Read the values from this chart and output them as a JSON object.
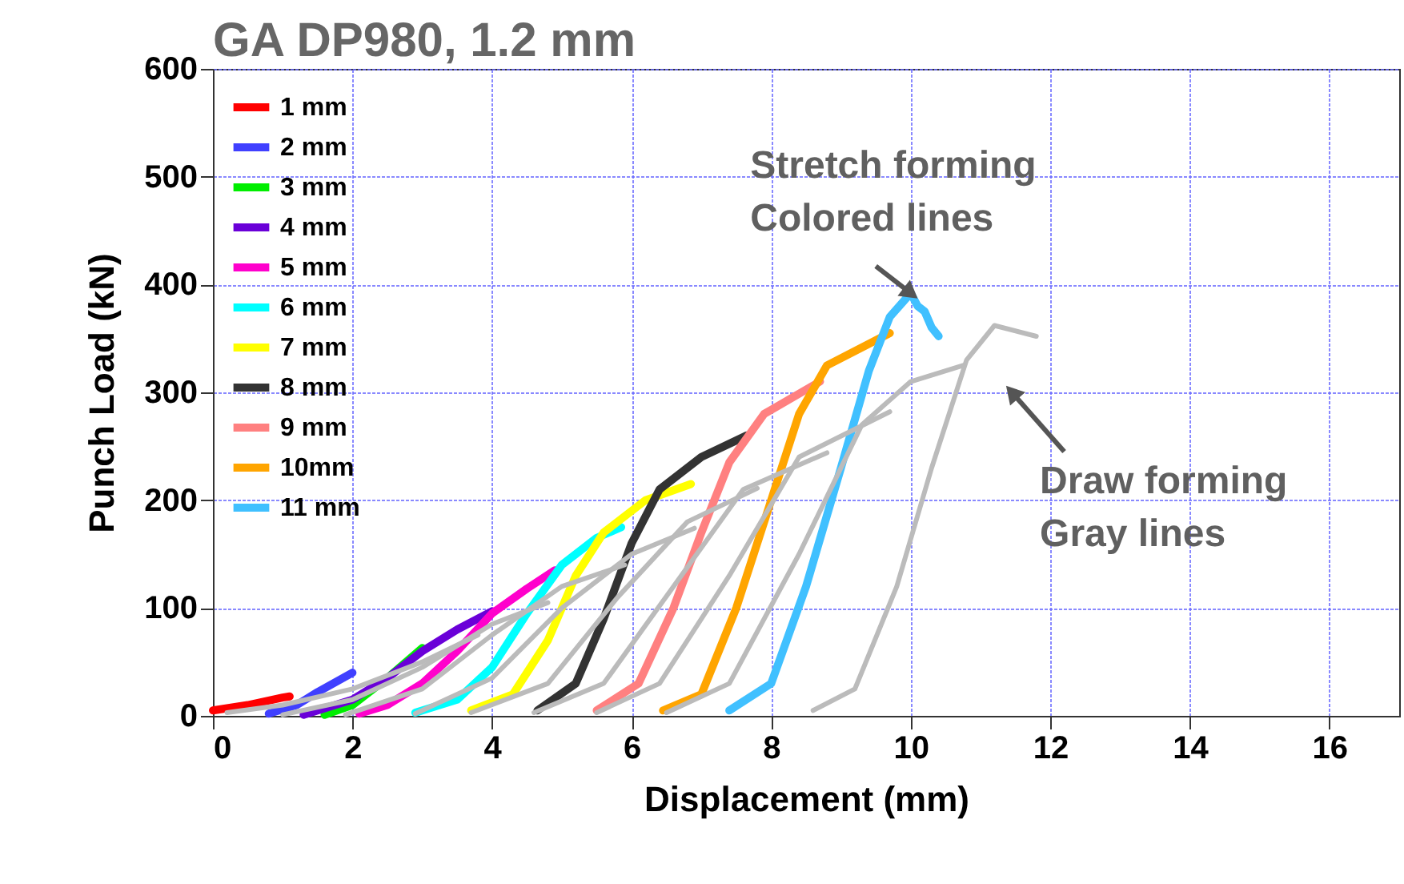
{
  "chart_data": {
    "type": "line",
    "title": "GA DP980, 1.2 mm",
    "xlabel": "Displacement (mm)",
    "ylabel": "Punch Load (kN)",
    "xlim": [
      0,
      17
    ],
    "xticks": [
      0,
      2,
      4,
      6,
      8,
      10,
      12,
      14,
      16
    ],
    "ylim": [
      0,
      600
    ],
    "yticks": [
      0,
      100,
      200,
      300,
      400,
      500,
      600
    ],
    "grid": true,
    "legend": "top left",
    "line_style": "solid",
    "annotations": [
      {
        "text": "Stretch forming\nColored lines",
        "x": 10.0,
        "y": 392
      },
      "Draw forming\nGray lines"
    ],
    "series": [
      {
        "name": "1 mm",
        "color": "#ff0000",
        "x": [
          0,
          0.5,
          1.0,
          1.1
        ],
        "values": [
          5,
          10,
          17,
          18
        ]
      },
      {
        "name": "2 mm",
        "color": "#4040ff",
        "x": [
          0.8,
          1.2,
          1.5,
          2.0
        ],
        "values": [
          2,
          10,
          22,
          40
        ]
      },
      {
        "name": "3 mm",
        "color": "#00ee00",
        "x": [
          1.6,
          2.0,
          2.5,
          3.0
        ],
        "values": [
          1,
          10,
          35,
          63
        ]
      },
      {
        "name": "4 mm",
        "color": "#6a00d8",
        "x": [
          1.3,
          2.0,
          2.5,
          3.0,
          3.5,
          4.0
        ],
        "values": [
          1,
          15,
          35,
          60,
          80,
          97
        ]
      },
      {
        "name": "5 mm",
        "color": "#ff00cc",
        "x": [
          2.1,
          2.5,
          3.0,
          3.5,
          4.0,
          4.5,
          4.9
        ],
        "values": [
          2,
          10,
          30,
          60,
          95,
          118,
          135
        ]
      },
      {
        "name": "6 mm",
        "color": "#00ffff",
        "x": [
          2.9,
          3.5,
          4.0,
          4.5,
          5.0,
          5.5,
          5.85
        ],
        "values": [
          3,
          15,
          45,
          95,
          140,
          165,
          175
        ]
      },
      {
        "name": "7 mm",
        "color": "#ffff00",
        "x": [
          3.7,
          4.3,
          4.8,
          5.2,
          5.6,
          6.2,
          6.85
        ],
        "values": [
          5,
          20,
          70,
          130,
          170,
          200,
          215
        ]
      },
      {
        "name": "8 mm",
        "color": "#333333",
        "x": [
          4.65,
          5.2,
          5.6,
          6.0,
          6.4,
          7.0,
          7.65
        ],
        "values": [
          5,
          30,
          90,
          160,
          210,
          240,
          260
        ]
      },
      {
        "name": "9 mm",
        "color": "#ff8080",
        "x": [
          5.5,
          6.1,
          6.6,
          7.0,
          7.4,
          7.9,
          8.7
        ],
        "values": [
          5,
          30,
          100,
          170,
          235,
          280,
          310
        ]
      },
      {
        "name": "10mm",
        "color": "#ffa500",
        "x": [
          6.45,
          7.0,
          7.5,
          8.0,
          8.4,
          8.8,
          9.7
        ],
        "values": [
          5,
          20,
          100,
          200,
          280,
          325,
          355
        ]
      },
      {
        "name": "11 mm",
        "color": "#40c0ff",
        "x": [
          7.4,
          8.0,
          8.5,
          9.0,
          9.4,
          9.7,
          10.0,
          10.1,
          10.2,
          10.3,
          10.4
        ],
        "values": [
          5,
          30,
          120,
          230,
          320,
          370,
          392,
          380,
          375,
          360,
          352
        ]
      },
      {
        "color": "#bbbbbb",
        "x": [
          0.2,
          1.0,
          2.0,
          3.0,
          3.8
        ],
        "values": [
          3,
          10,
          25,
          50,
          75
        ]
      },
      {
        "color": "#bbbbbb",
        "x": [
          1.0,
          2.0,
          3.0,
          4.0,
          4.8
        ],
        "values": [
          1,
          15,
          45,
          85,
          105
        ]
      },
      {
        "color": "#bbbbbb",
        "x": [
          1.9,
          3.0,
          4.0,
          5.0,
          5.9
        ],
        "values": [
          1,
          25,
          75,
          120,
          140
        ]
      },
      {
        "color": "#bbbbbb",
        "x": [
          2.9,
          4.0,
          5.0,
          6.0,
          6.9
        ],
        "values": [
          2,
          35,
          100,
          150,
          174
        ]
      },
      {
        "color": "#bbbbbb",
        "x": [
          3.7,
          4.8,
          5.8,
          6.8,
          7.8
        ],
        "values": [
          3,
          30,
          110,
          180,
          211
        ]
      },
      {
        "color": "#bbbbbb",
        "x": [
          4.6,
          5.6,
          6.6,
          7.6,
          8.8
        ],
        "values": [
          3,
          30,
          120,
          210,
          244
        ]
      },
      {
        "color": "#bbbbbb",
        "x": [
          5.5,
          6.4,
          7.4,
          8.4,
          9.7
        ],
        "values": [
          3,
          30,
          130,
          240,
          282
        ]
      },
      {
        "color": "#bbbbbb",
        "x": [
          6.5,
          7.4,
          8.4,
          9.3,
          10.0,
          10.75
        ],
        "values": [
          3,
          30,
          150,
          270,
          310,
          325
        ]
      },
      {
        "color": "#bbbbbb",
        "x": [
          8.6,
          9.2,
          9.8,
          10.3,
          10.8,
          11.2,
          11.8
        ],
        "values": [
          5,
          25,
          120,
          230,
          330,
          362,
          352
        ]
      }
    ]
  }
}
